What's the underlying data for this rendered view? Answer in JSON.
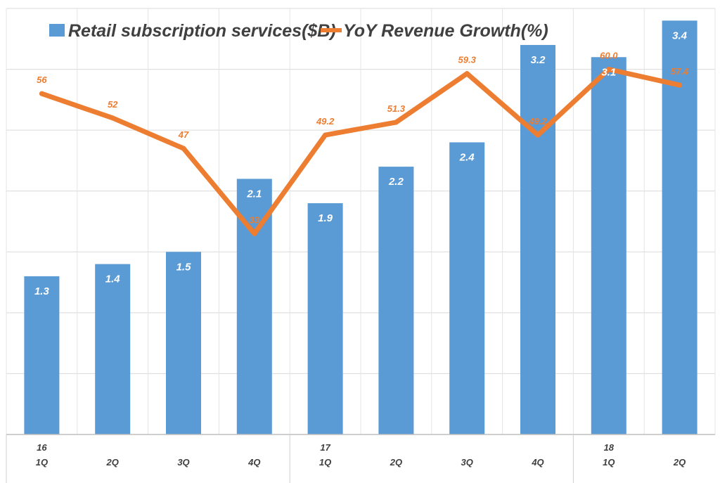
{
  "chart_data": {
    "type": "bar+line",
    "title": "",
    "categories": [
      "1Q",
      "2Q",
      "3Q",
      "4Q",
      "1Q",
      "2Q",
      "3Q",
      "4Q",
      "1Q",
      "2Q"
    ],
    "year_labels": [
      "16",
      "",
      "",
      "",
      "17",
      "",
      "",
      "",
      "18",
      ""
    ],
    "series": [
      {
        "name": "Retail subscription services($B)",
        "type": "bar",
        "color": "#5b9bd5",
        "values": [
          1.3,
          1.4,
          1.5,
          2.1,
          1.9,
          2.2,
          2.4,
          3.2,
          3.1,
          3.4
        ],
        "labels": [
          "1.3",
          "1.4",
          "1.5",
          "2.1",
          "1.9",
          "2.2",
          "2.4",
          "3.2",
          "3.1",
          "3.4"
        ],
        "ylim": [
          0,
          3.5
        ]
      },
      {
        "name": "YoY Revenue Growth(%)",
        "type": "line",
        "color": "#ed7d31",
        "values": [
          56,
          52,
          47,
          33,
          49.2,
          51.3,
          59.3,
          49.2,
          60.0,
          57.4
        ],
        "labels": [
          "56",
          "52",
          "47",
          "33",
          "49.2",
          "51.3",
          "59.3",
          "49.2",
          "60.0",
          "57.4"
        ],
        "ylim": [
          0,
          70
        ]
      }
    ],
    "legend_position": "top-left",
    "grid": true
  }
}
